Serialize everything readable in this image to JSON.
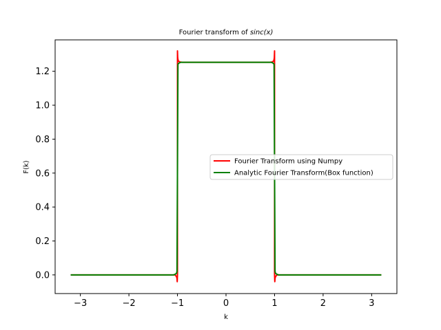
{
  "chart_data": {
    "type": "line",
    "title_prefix": "Fourier transform of ",
    "title_math": "sinc(x)",
    "xlabel": "k",
    "ylabel": "F(k)",
    "xlim": [
      -3.52,
      3.52
    ],
    "ylim": [
      -0.11,
      1.385
    ],
    "x_ticks": [
      -3,
      -2,
      -1,
      0,
      1,
      2,
      3
    ],
    "x_tick_labels": [
      "−3",
      "−2",
      "−1",
      "0",
      "1",
      "2",
      "3"
    ],
    "y_ticks": [
      0.0,
      0.2,
      0.4,
      0.6,
      0.8,
      1.0,
      1.2
    ],
    "y_tick_labels": [
      "0.0",
      "0.2",
      "0.4",
      "0.6",
      "0.8",
      "1.0",
      "1.2"
    ],
    "grid": false,
    "legend_position": "center-right",
    "plateau_value": 1.2533,
    "box_edges": [
      -1,
      1
    ],
    "x_range": [
      -3.2,
      3.2
    ],
    "series": [
      {
        "name": "Fourier Transform using Numpy",
        "color": "#ff0000",
        "x": [
          -3.2,
          -1.05,
          -1.02,
          -1.01,
          -1.005,
          -1.0,
          -1.0,
          -0.995,
          -0.99,
          -0.98,
          -0.95,
          -0.9,
          0.0,
          0.9,
          0.95,
          0.98,
          0.99,
          0.995,
          1.0,
          1.0,
          1.005,
          1.01,
          1.02,
          1.05,
          3.2
        ],
        "y": [
          0.0,
          0.0,
          -0.01,
          -0.02,
          -0.04,
          0.0,
          1.32,
          1.28,
          1.27,
          1.26,
          1.255,
          1.253,
          1.253,
          1.253,
          1.255,
          1.26,
          1.27,
          1.28,
          1.32,
          0.0,
          -0.04,
          -0.02,
          -0.01,
          0.0,
          0.0
        ]
      },
      {
        "name": "Analytic Fourier Transform(Box function)",
        "color": "#008000",
        "x": [
          -3.2,
          -1.08,
          -1.04,
          -1.02,
          -1.01,
          -1.0,
          -0.99,
          -0.98,
          -0.96,
          -0.92,
          0.0,
          0.92,
          0.96,
          0.98,
          0.99,
          1.0,
          1.01,
          1.02,
          1.04,
          1.08,
          3.2
        ],
        "y": [
          0.0,
          0.0,
          0.005,
          0.01,
          0.02,
          0.627,
          1.24,
          1.245,
          1.25,
          1.253,
          1.253,
          1.253,
          1.25,
          1.245,
          1.24,
          0.627,
          0.02,
          0.01,
          0.005,
          0.0,
          0.0
        ]
      }
    ]
  }
}
